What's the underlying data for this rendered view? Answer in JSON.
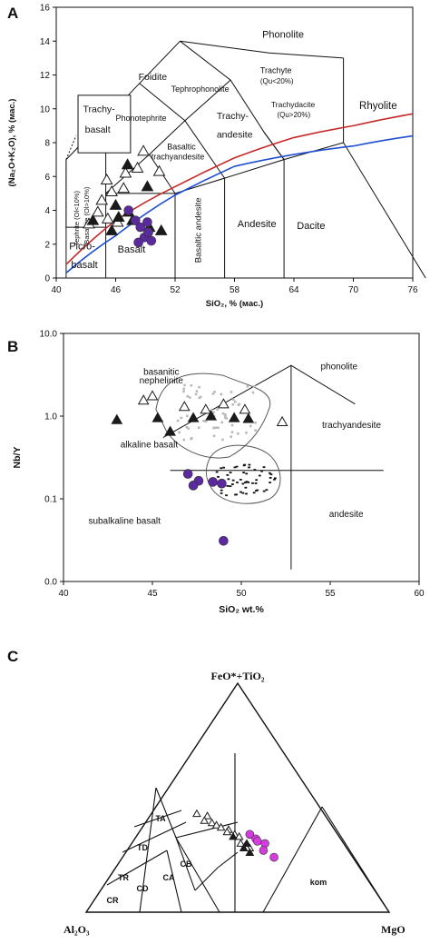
{
  "panels": {
    "A": {
      "letter": "A",
      "ylabel": "(Na₂O+K₂O), % (мас.)",
      "xlabel": "SiO₂, % (мас.)",
      "yticks": [
        "0",
        "2",
        "4",
        "6",
        "8",
        "10",
        "12",
        "14",
        "16"
      ],
      "xticks": [
        "40",
        "46",
        "52",
        "58",
        "64",
        "70",
        "76"
      ],
      "fields": {
        "phonolite": "Phonolite",
        "foidite": "Foidite",
        "tephrophonolite": "Tephrophonolite",
        "trachyte": "Trachyte",
        "trachyte_q": "(Qu<20%)",
        "phonotephrite": "Phonotephrite",
        "trachy": "Trachy-",
        "andesite_tr": "andesite",
        "trachydacite": "Trachydacite",
        "trachydacite_q": "(Qu>20%)",
        "rhyolite": "Rhyolite",
        "trachybasalt_1": "Trachy-",
        "trachybasalt_2": "basalt",
        "basaltic": "Basaltic",
        "trachyandesite": "trachyandesite",
        "tephrite": "Tephrite (Ol<10%)",
        "basanite": "Basanite (Ol>10%)",
        "picro_1": "Picro-",
        "picro_2": "basalt",
        "basalt": "Basalt",
        "basaltic_andesite": "Basaltic andesite",
        "andesite": "Andesite",
        "dacite": "Dacite"
      }
    },
    "B": {
      "letter": "B",
      "ylabel": "Nb/Y",
      "xlabel": "SiO₂ wt.%",
      "yticks": [
        "0.0",
        "0.1",
        "1.0",
        "10.0"
      ],
      "xticks": [
        "40",
        "45",
        "50",
        "55",
        "60"
      ],
      "fields": {
        "basanitic": "basanitic",
        "nephelinite": "nephelinite",
        "phonolite": "phonolite",
        "trachyandesite": "trachyandesite",
        "alkaline_basalt": "alkaline basalt",
        "subalkaline_basalt": "subalkaline basalt",
        "andesite": "andesite"
      }
    },
    "C": {
      "letter": "C",
      "apex_top": "FeO*+TiO₂",
      "apex_left": "Al₂O₃",
      "apex_right": "MgO",
      "fields": {
        "TA": "TA",
        "TD": "TD",
        "TR": "TR",
        "CR": "CR",
        "CD": "CD",
        "CA": "CA",
        "CB": "CB",
        "kom": "kom"
      }
    }
  },
  "chart_data": [
    {
      "type": "scatter",
      "title": "",
      "xlabel": "SiO₂, % (мас.)",
      "ylabel": "(Na₂O+K₂O), % (мас.)",
      "xlim": [
        40,
        76
      ],
      "ylim": [
        0,
        16
      ],
      "series": [
        {
          "marker": "open-triangle",
          "color": "#ffffff",
          "x": [
            43.3,
            44.2,
            44.6,
            45.6,
            45.1,
            46.8,
            48.2,
            47.0,
            48.8,
            50.4,
            46.2,
            45.2
          ],
          "y": [
            3.2,
            3.9,
            4.6,
            5.1,
            5.8,
            5.3,
            6.5,
            6.2,
            7.5,
            6.3,
            3.3,
            3.5
          ]
        },
        {
          "marker": "filled-triangle",
          "color": "#1a1a1a",
          "x": [
            43.7,
            45.6,
            46.3,
            47.3,
            49.2,
            46.0,
            47.7,
            50.6,
            47.2,
            49.4
          ],
          "y": [
            3.4,
            2.8,
            3.6,
            3.9,
            5.4,
            4.3,
            3.4,
            2.8,
            6.7,
            3.0
          ]
        },
        {
          "marker": "circle",
          "color": "#5b2a9e",
          "x": [
            47.3,
            48.0,
            48.5,
            48.9,
            49.3,
            48.3,
            49.6,
            49.2
          ],
          "y": [
            4.0,
            3.4,
            3.0,
            2.4,
            2.7,
            2.1,
            2.2,
            3.3
          ]
        }
      ],
      "boundary_lines": [
        {
          "color": "#c62828",
          "x": [
            41,
            46,
            52,
            58,
            64,
            70,
            76
          ],
          "y": [
            0.8,
            3.4,
            5.4,
            7.1,
            8.3,
            9.0,
            9.7
          ]
        },
        {
          "color": "#1f4fd0",
          "x": [
            41,
            46,
            52,
            58,
            64,
            70,
            76
          ],
          "y": [
            0.3,
            2.5,
            4.9,
            6.6,
            7.3,
            7.8,
            8.4
          ]
        }
      ]
    },
    {
      "type": "scatter",
      "title": "",
      "xlabel": "SiO₂ wt.%",
      "ylabel": "Nb/Y",
      "xlim": [
        40,
        60
      ],
      "ylim": [
        0.01,
        10
      ],
      "yscale": "log",
      "series": [
        {
          "marker": "open-triangle",
          "color": "#ffffff",
          "x": [
            44.5,
            45.0,
            46.8,
            48.0,
            49.0,
            50.2,
            52.3
          ],
          "y": [
            1.55,
            1.75,
            1.3,
            1.2,
            1.4,
            1.2,
            0.85
          ]
        },
        {
          "marker": "filled-triangle",
          "color": "#1a1a1a",
          "x": [
            43.0,
            45.3,
            46.0,
            47.3,
            48.3,
            49.6,
            50.4
          ],
          "y": [
            0.9,
            0.95,
            0.65,
            0.95,
            1.0,
            0.95,
            0.93
          ]
        },
        {
          "marker": "circle",
          "color": "#5b2a9e",
          "x": [
            47.0,
            47.6,
            47.3,
            48.4,
            48.9,
            49.0
          ],
          "y": [
            0.2,
            0.165,
            0.145,
            0.16,
            0.153,
            0.031
          ]
        }
      ]
    },
    {
      "type": "scatter",
      "title": "",
      "axes": [
        "Al₂O₃",
        "FeO*+TiO₂",
        "MgO"
      ],
      "series": [
        {
          "marker": "open-triangle",
          "color": "#ffffff",
          "ternary": [
            [
              0.42,
              0.43,
              0.15
            ],
            [
              0.39,
              0.42,
              0.19
            ],
            [
              0.41,
              0.4,
              0.19
            ],
            [
              0.39,
              0.39,
              0.22
            ],
            [
              0.38,
              0.38,
              0.24
            ],
            [
              0.37,
              0.37,
              0.26
            ],
            [
              0.35,
              0.36,
              0.29
            ],
            [
              0.36,
              0.35,
              0.29
            ],
            [
              0.34,
              0.34,
              0.32
            ],
            [
              0.33,
              0.33,
              0.34
            ],
            [
              0.34,
              0.3,
              0.36
            ],
            [
              0.33,
              0.29,
              0.38
            ],
            [
              0.32,
              0.28,
              0.4
            ],
            [
              0.33,
              0.28,
              0.39
            ]
          ]
        },
        {
          "marker": "filled-triangle",
          "color": "#1a1a1a",
          "ternary": [
            [
              0.35,
              0.33,
              0.32
            ],
            [
              0.34,
              0.28,
              0.38
            ],
            [
              0.32,
              0.3,
              0.38
            ],
            [
              0.33,
              0.26,
              0.41
            ]
          ]
        },
        {
          "marker": "circle",
          "color": "#d63be0",
          "ternary": [
            [
              0.29,
              0.34,
              0.37
            ],
            [
              0.28,
              0.32,
              0.4
            ],
            [
              0.28,
              0.31,
              0.41
            ],
            [
              0.26,
              0.3,
              0.44
            ],
            [
              0.28,
              0.27,
              0.45
            ],
            [
              0.26,
              0.24,
              0.5
            ]
          ]
        }
      ]
    }
  ]
}
